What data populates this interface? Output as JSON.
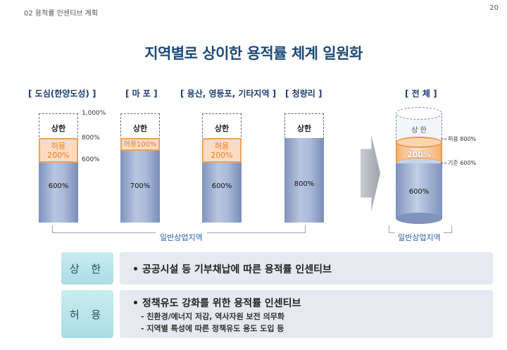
{
  "header": {
    "section": "02 용적률 인센티브 계획",
    "page_number": "20"
  },
  "title": "지역별로 상이한 용적률 체계 일원화",
  "regions": [
    {
      "label": "[ 도심(한양도성) ]",
      "upper": "상한",
      "allow_line1": "허용",
      "allow_line2": "200%",
      "base": "600%"
    },
    {
      "label": "[ 마 포 ]",
      "upper": "상한",
      "allow_inline": "허용100%",
      "base": "700%"
    },
    {
      "label": "[ 용산, 영등포, 기타지역 ]",
      "upper": "상한",
      "allow_line1": "허용",
      "allow_line2": "200%",
      "base": "600%"
    },
    {
      "label": "[ 청량리 ]",
      "upper": "상한",
      "base": "800%"
    }
  ],
  "scale_marks": [
    "1,000%",
    "800%",
    "600%"
  ],
  "zone_label": "일반상업지역",
  "total": {
    "label": "[ 전 체 ]",
    "upper": "상 한",
    "allow": "200%",
    "base": "600%",
    "legend_allow": "허용 800%",
    "legend_base": "기준 600%",
    "zone_label": "일반상업지역"
  },
  "rows": [
    {
      "tag": "상 한",
      "lines": [
        "• 공공시설 등 기부채납에 따른 용적률 인센티브"
      ]
    },
    {
      "tag": "허 용",
      "lines": [
        "• 정책유도 강화를 위한 용적률 인센티브",
        "- 친환경/에너지  저감, 역사자원 보전 의무화",
        "- 지역별 특성에 따른 정책유도 용도 도입 등"
      ]
    }
  ],
  "colors": {
    "title": "#1c4a79",
    "allow_orange": "#ee7d20",
    "bar_blue": "#a9b9d8",
    "zone_text": "#2a5ca7",
    "tag_teal": "#a9dde2"
  }
}
